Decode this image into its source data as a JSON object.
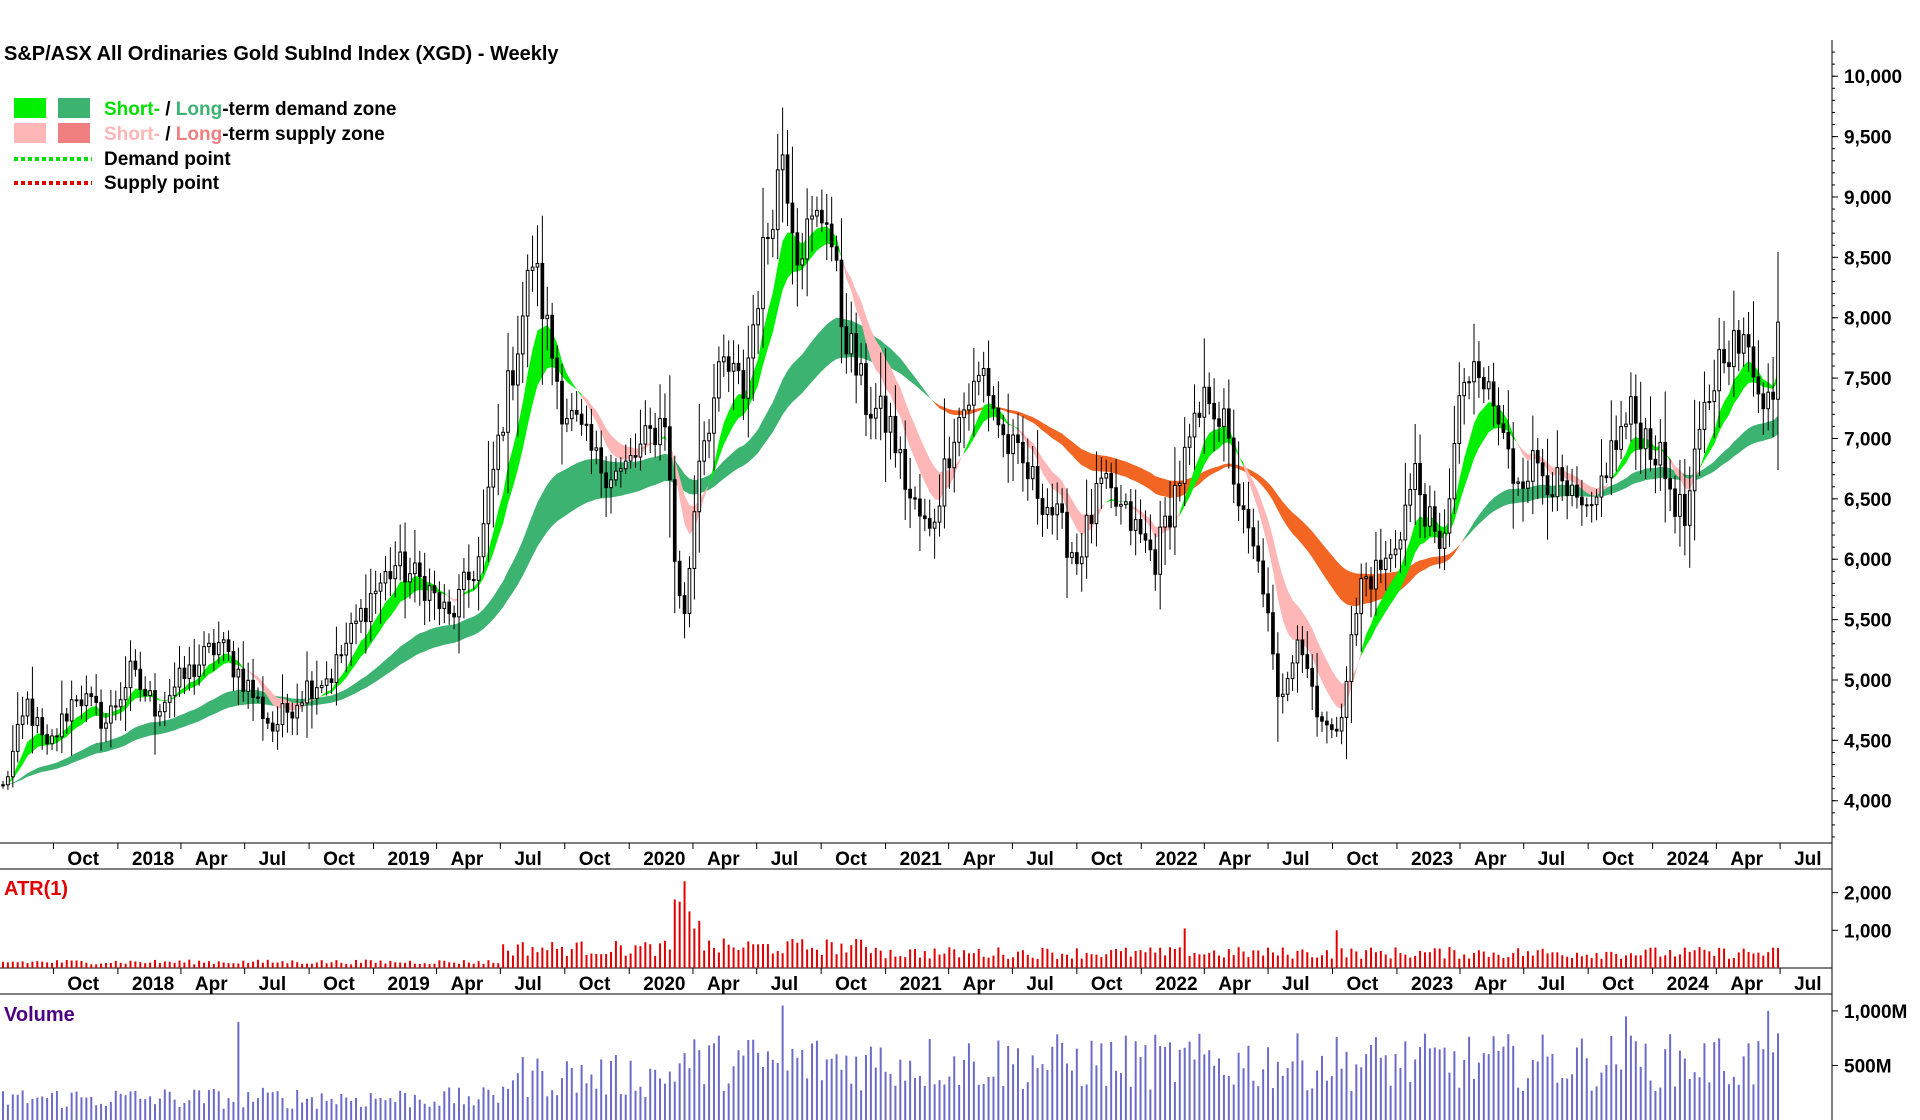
{
  "chart_data": {
    "type": "candlestick",
    "title": "S&P/ASX All Ordinaries Gold SubInd Index (XGD) - Weekly",
    "legend": {
      "placement": "top-left",
      "demand_short": "Short-",
      "demand_sep": " / ",
      "demand_long": "Long",
      "demand_rest": "-term demand zone",
      "supply_short": "Short-",
      "supply_sep": " / ",
      "supply_long": "Long",
      "supply_rest": "-term supply zone",
      "demand_point": "Demand point",
      "supply_point": "Supply point"
    },
    "colors": {
      "short_demand": "#00f000",
      "long_demand": "#3cb371",
      "short_supply": "#ffb6b6",
      "long_supply": "#f08080",
      "supply_fill": "#f26522",
      "demand_point": "#00e000",
      "supply_point": "#e00000",
      "atr": "#e00000",
      "volume": "#6c6cc8",
      "candle": "#000000"
    },
    "x_ticks": [
      "Oct",
      "2018",
      "Apr",
      "Jul",
      "Oct",
      "2019",
      "Apr",
      "Jul",
      "Oct",
      "2020",
      "Apr",
      "Jul",
      "Oct",
      "2021",
      "Apr",
      "Jul",
      "Oct",
      "2022",
      "Apr",
      "Jul",
      "Oct",
      "2023",
      "Apr",
      "Jul",
      "Oct",
      "2024",
      "Apr",
      "Jul"
    ],
    "y_ticks": [
      "10,000",
      "9,500",
      "9,000",
      "8,500",
      "8,000",
      "7,500",
      "7,000",
      "6,500",
      "6,000",
      "5,500",
      "5,000",
      "4,500",
      "4,000"
    ],
    "ylim": [
      3650,
      10300
    ],
    "price_keypoints": [
      {
        "date": "2017-07-21",
        "price": 4100
      },
      {
        "date": "2017-08-25",
        "price": 4800
      },
      {
        "date": "2017-09-22",
        "price": 4400
      },
      {
        "date": "2017-11-03",
        "price": 4900
      },
      {
        "date": "2017-12-15",
        "price": 4650
      },
      {
        "date": "2018-01-19",
        "price": 5050
      },
      {
        "date": "2018-02-23",
        "price": 4780
      },
      {
        "date": "2018-04-20",
        "price": 5100
      },
      {
        "date": "2018-05-25",
        "price": 5300
      },
      {
        "date": "2018-07-06",
        "price": 4950
      },
      {
        "date": "2018-08-10",
        "price": 4600
      },
      {
        "date": "2018-09-28",
        "price": 4950
      },
      {
        "date": "2018-11-02",
        "price": 5050
      },
      {
        "date": "2018-12-28",
        "price": 5700
      },
      {
        "date": "2019-02-01",
        "price": 5950
      },
      {
        "date": "2019-03-15",
        "price": 5800
      },
      {
        "date": "2019-04-19",
        "price": 5500
      },
      {
        "date": "2019-05-31",
        "price": 6000
      },
      {
        "date": "2019-07-05",
        "price": 7200
      },
      {
        "date": "2019-07-26",
        "price": 7800
      },
      {
        "date": "2019-08-16",
        "price": 8500
      },
      {
        "date": "2019-09-06",
        "price": 7900
      },
      {
        "date": "2019-09-27",
        "price": 7300
      },
      {
        "date": "2019-11-15",
        "price": 6800
      },
      {
        "date": "2019-12-20",
        "price": 6700
      },
      {
        "date": "2020-01-17",
        "price": 6900
      },
      {
        "date": "2020-02-21",
        "price": 7200
      },
      {
        "date": "2020-03-06",
        "price": 6000
      },
      {
        "date": "2020-03-20",
        "price": 5500
      },
      {
        "date": "2020-04-10",
        "price": 6900
      },
      {
        "date": "2020-05-15",
        "price": 7600
      },
      {
        "date": "2020-06-12",
        "price": 7400
      },
      {
        "date": "2020-07-10",
        "price": 8500
      },
      {
        "date": "2020-08-07",
        "price": 9400
      },
      {
        "date": "2020-08-28",
        "price": 8600
      },
      {
        "date": "2020-10-09",
        "price": 8900
      },
      {
        "date": "2020-10-30",
        "price": 8000
      },
      {
        "date": "2020-12-04",
        "price": 7300
      },
      {
        "date": "2021-01-08",
        "price": 7100
      },
      {
        "date": "2021-02-05",
        "price": 6500
      },
      {
        "date": "2021-03-05",
        "price": 6200
      },
      {
        "date": "2021-04-09",
        "price": 7100
      },
      {
        "date": "2021-05-21",
        "price": 7550
      },
      {
        "date": "2021-06-18",
        "price": 7000
      },
      {
        "date": "2021-07-23",
        "price": 6700
      },
      {
        "date": "2021-08-27",
        "price": 6400
      },
      {
        "date": "2021-10-01",
        "price": 6000
      },
      {
        "date": "2021-11-05",
        "price": 6600
      },
      {
        "date": "2021-12-17",
        "price": 6300
      },
      {
        "date": "2022-01-21",
        "price": 6000
      },
      {
        "date": "2022-02-25",
        "price": 6700
      },
      {
        "date": "2022-04-08",
        "price": 7400
      },
      {
        "date": "2022-04-29",
        "price": 7100
      },
      {
        "date": "2022-05-27",
        "price": 6300
      },
      {
        "date": "2022-06-24",
        "price": 5800
      },
      {
        "date": "2022-07-15",
        "price": 4800
      },
      {
        "date": "2022-08-12",
        "price": 5400
      },
      {
        "date": "2022-09-09",
        "price": 4800
      },
      {
        "date": "2022-09-30",
        "price": 4500
      },
      {
        "date": "2022-10-14",
        "price": 4800
      },
      {
        "date": "2022-11-11",
        "price": 5800
      },
      {
        "date": "2022-12-23",
        "price": 6000
      },
      {
        "date": "2023-01-27",
        "price": 6700
      },
      {
        "date": "2023-03-03",
        "price": 6000
      },
      {
        "date": "2023-04-07",
        "price": 7500
      },
      {
        "date": "2023-05-12",
        "price": 7400
      },
      {
        "date": "2023-06-16",
        "price": 6700
      },
      {
        "date": "2023-07-21",
        "price": 6800
      },
      {
        "date": "2023-09-01",
        "price": 6500
      },
      {
        "date": "2023-10-06",
        "price": 6300
      },
      {
        "date": "2023-10-27",
        "price": 6800
      },
      {
        "date": "2023-12-01",
        "price": 7200
      },
      {
        "date": "2024-01-05",
        "price": 6900
      },
      {
        "date": "2024-02-16",
        "price": 6300
      },
      {
        "date": "2024-03-15",
        "price": 7200
      },
      {
        "date": "2024-04-12",
        "price": 7800
      },
      {
        "date": "2024-05-17",
        "price": 7700
      },
      {
        "date": "2024-06-07",
        "price": 7400
      },
      {
        "date": "2024-06-21",
        "price": 7300
      },
      {
        "date": "2024-06-28",
        "price": 7900
      }
    ],
    "atr": {
      "label": "ATR(1)",
      "y_ticks": [
        "2,000",
        "1,000"
      ],
      "ylim": [
        0,
        2600
      ],
      "levels": [
        {
          "start": "2017-07-21",
          "end": "2019-06-30",
          "value": 160
        },
        {
          "start": "2019-07-01",
          "end": "2020-02-28",
          "value": 520
        },
        {
          "start": "2020-03-01",
          "end": "2020-04-10",
          "value": 1500
        },
        {
          "start": "2020-04-11",
          "end": "2020-12-31",
          "value": 560
        },
        {
          "start": "2021-01-01",
          "end": "2024-06-28",
          "value": 400
        }
      ],
      "spikes": [
        {
          "date": "2020-03-20",
          "value": 2300
        },
        {
          "date": "2020-03-27",
          "value": 1500
        },
        {
          "date": "2022-03-04",
          "value": 1050
        },
        {
          "date": "2022-10-07",
          "value": 1000
        }
      ]
    },
    "volume": {
      "label": "Volume",
      "y_ticks": [
        "1,000M",
        "500M"
      ],
      "ylim": [
        0,
        1100
      ],
      "levels": [
        {
          "start": "2017-07-21",
          "end": "2019-06-30",
          "value": 200
        },
        {
          "start": "2019-07-01",
          "end": "2020-02-28",
          "value": 400
        },
        {
          "start": "2020-03-01",
          "end": "2024-06-28",
          "value": 530
        }
      ],
      "spikes": [
        {
          "date": "2018-06-22",
          "value": 900
        },
        {
          "date": "2020-08-07",
          "value": 1050
        },
        {
          "date": "2023-11-24",
          "value": 950
        },
        {
          "date": "2024-06-14",
          "value": 1000
        }
      ]
    }
  }
}
